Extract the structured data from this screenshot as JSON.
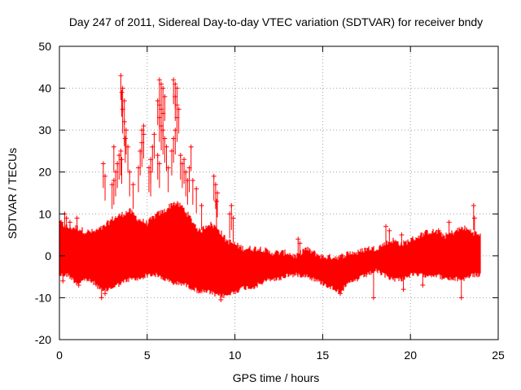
{
  "chart_data": {
    "type": "scatter",
    "title": "Day 247 of 2011, Sidereal Day-to-day VTEC variation (SDTVAR) for receiver bndy",
    "xlabel": "GPS time / hours",
    "ylabel": "SDTVAR / TECUs",
    "xlim": [
      0,
      25
    ],
    "ylim": [
      -20,
      50
    ],
    "xticks": [
      0,
      5,
      10,
      15,
      20,
      25
    ],
    "yticks": [
      -20,
      -10,
      0,
      10,
      20,
      30,
      40,
      50
    ],
    "grid": true,
    "marker": "+",
    "color": "#ff0000",
    "series": [
      {
        "name": "SDTVAR",
        "envelope": {
          "description": "dense band of samples bounded by lower/upper estimates (data units)",
          "hours": [
            0,
            0.5,
            1,
            1.5,
            2,
            2.5,
            3,
            3.5,
            4,
            4.5,
            5,
            5.5,
            6,
            6.5,
            7,
            7.5,
            8,
            8.5,
            9,
            9.5,
            10,
            10.5,
            11,
            11.5,
            12,
            12.5,
            13,
            13.5,
            14,
            14.5,
            15,
            15.5,
            16,
            16.5,
            17,
            17.5,
            18,
            18.5,
            19,
            19.5,
            20,
            20.5,
            21,
            21.5,
            22,
            22.5,
            23,
            23.5,
            24
          ],
          "lower": [
            -4,
            -4,
            -6,
            -5,
            -6,
            -8,
            -7,
            -6,
            -5,
            -5,
            -4,
            -4,
            -5,
            -6,
            -6,
            -7,
            -8,
            -8,
            -9,
            -9,
            -8,
            -7,
            -7,
            -6,
            -5,
            -5,
            -4,
            -4,
            -4,
            -5,
            -6,
            -7,
            -8,
            -6,
            -5,
            -4,
            -3,
            -4,
            -5,
            -5,
            -4,
            -4,
            -4,
            -4,
            -5,
            -5,
            -5,
            -4,
            -4
          ],
          "upper": [
            7,
            6,
            6,
            5,
            5,
            6,
            8,
            9,
            10,
            8,
            7,
            9,
            10,
            12,
            11,
            8,
            5,
            7,
            6,
            3,
            2,
            1,
            1,
            1,
            0,
            0,
            0,
            -1,
            1,
            0,
            -1,
            -1,
            -1,
            0,
            0,
            1,
            1,
            2,
            3,
            2,
            3,
            4,
            5,
            5,
            4,
            5,
            6,
            5,
            4
          ]
        },
        "outliers": [
          {
            "x": 0.1,
            "y": 8
          },
          {
            "x": 0.3,
            "y": 10
          },
          {
            "x": 0.4,
            "y": 9
          },
          {
            "x": 0.6,
            "y": 8
          },
          {
            "x": 1.0,
            "y": 9
          },
          {
            "x": 0.2,
            "y": -6
          },
          {
            "x": 2.5,
            "y": 22
          },
          {
            "x": 2.6,
            "y": 19
          },
          {
            "x": 3.0,
            "y": 17
          },
          {
            "x": 3.1,
            "y": 18
          },
          {
            "x": 3.2,
            "y": 20
          },
          {
            "x": 3.3,
            "y": 22
          },
          {
            "x": 3.4,
            "y": 24
          },
          {
            "x": 3.5,
            "y": 25
          },
          {
            "x": 3.55,
            "y": 23
          },
          {
            "x": 3.1,
            "y": 26
          },
          {
            "x": 3.5,
            "y": 43
          },
          {
            "x": 3.6,
            "y": 40
          },
          {
            "x": 3.55,
            "y": 39
          },
          {
            "x": 3.7,
            "y": 37
          },
          {
            "x": 3.6,
            "y": 35
          },
          {
            "x": 3.7,
            "y": 32
          },
          {
            "x": 3.8,
            "y": 30
          },
          {
            "x": 3.75,
            "y": 28
          },
          {
            "x": 3.9,
            "y": 26
          },
          {
            "x": 4.0,
            "y": 20
          },
          {
            "x": 4.2,
            "y": 17
          },
          {
            "x": 4.5,
            "y": 21
          },
          {
            "x": 4.6,
            "y": 25
          },
          {
            "x": 4.7,
            "y": 27
          },
          {
            "x": 4.8,
            "y": 29
          },
          {
            "x": 4.7,
            "y": 30
          },
          {
            "x": 4.8,
            "y": 31
          },
          {
            "x": 5.2,
            "y": 23
          },
          {
            "x": 5.3,
            "y": 26
          },
          {
            "x": 5.4,
            "y": 29
          },
          {
            "x": 5.1,
            "y": 21
          },
          {
            "x": 5.2,
            "y": 20
          },
          {
            "x": 5.6,
            "y": 37
          },
          {
            "x": 5.7,
            "y": 42
          },
          {
            "x": 5.8,
            "y": 41
          },
          {
            "x": 5.9,
            "y": 40
          },
          {
            "x": 6.0,
            "y": 38
          },
          {
            "x": 5.7,
            "y": 36
          },
          {
            "x": 5.8,
            "y": 35
          },
          {
            "x": 5.9,
            "y": 34
          },
          {
            "x": 5.7,
            "y": 33
          },
          {
            "x": 5.8,
            "y": 31
          },
          {
            "x": 5.9,
            "y": 30
          },
          {
            "x": 6.0,
            "y": 28
          },
          {
            "x": 6.1,
            "y": 26
          },
          {
            "x": 5.6,
            "y": 24
          },
          {
            "x": 5.7,
            "y": 22
          },
          {
            "x": 6.5,
            "y": 42
          },
          {
            "x": 6.6,
            "y": 41
          },
          {
            "x": 6.7,
            "y": 40
          },
          {
            "x": 6.6,
            "y": 38
          },
          {
            "x": 6.7,
            "y": 36
          },
          {
            "x": 6.8,
            "y": 35
          },
          {
            "x": 6.7,
            "y": 33
          },
          {
            "x": 6.2,
            "y": 21
          },
          {
            "x": 6.4,
            "y": 25
          },
          {
            "x": 6.5,
            "y": 28
          },
          {
            "x": 6.6,
            "y": 30
          },
          {
            "x": 6.9,
            "y": 24
          },
          {
            "x": 7.0,
            "y": 22
          },
          {
            "x": 7.1,
            "y": 23
          },
          {
            "x": 7.2,
            "y": 20
          },
          {
            "x": 7.3,
            "y": 18
          },
          {
            "x": 7.5,
            "y": 26
          },
          {
            "x": 7.4,
            "y": 21
          },
          {
            "x": 7.6,
            "y": 18
          },
          {
            "x": 7.8,
            "y": 16
          },
          {
            "x": 8.1,
            "y": 12
          },
          {
            "x": 8.8,
            "y": 19
          },
          {
            "x": 8.9,
            "y": 17
          },
          {
            "x": 9.0,
            "y": 15
          },
          {
            "x": 8.95,
            "y": 13
          },
          {
            "x": 9.8,
            "y": 12
          },
          {
            "x": 9.7,
            "y": 10
          },
          {
            "x": 9.9,
            "y": 9
          },
          {
            "x": 9.2,
            "y": -10.5
          },
          {
            "x": 2.4,
            "y": -10
          },
          {
            "x": 2.6,
            "y": -9
          },
          {
            "x": 1.1,
            "y": -7
          },
          {
            "x": 23.6,
            "y": 12
          },
          {
            "x": 23.65,
            "y": 9
          },
          {
            "x": 18.6,
            "y": 7
          },
          {
            "x": 18.8,
            "y": 6
          },
          {
            "x": 19.5,
            "y": 5
          },
          {
            "x": 22.2,
            "y": 8
          },
          {
            "x": 21.6,
            "y": 6
          },
          {
            "x": 22.9,
            "y": -10
          },
          {
            "x": 17.9,
            "y": -10
          },
          {
            "x": 19.6,
            "y": -8
          },
          {
            "x": 20.7,
            "y": -7
          },
          {
            "x": 13.6,
            "y": 4
          },
          {
            "x": 13.7,
            "y": 3
          },
          {
            "x": 16.0,
            "y": -9
          }
        ]
      }
    ]
  }
}
